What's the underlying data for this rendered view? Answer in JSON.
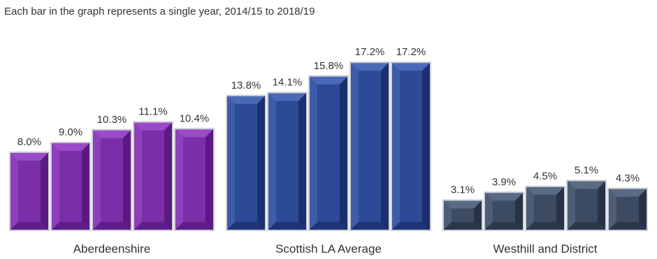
{
  "subtitle": "Each bar in the graph represents a single year, 2014/15 to 2018/19",
  "chart_data": {
    "type": "bar",
    "categories": [
      "Aberdeenshire",
      "Scottish LA Average",
      "Westhill and District"
    ],
    "series_per_category": 5,
    "values": [
      [
        8.0,
        9.0,
        10.3,
        11.1,
        10.4
      ],
      [
        13.8,
        14.1,
        15.8,
        17.2,
        17.2
      ],
      [
        3.1,
        3.9,
        4.5,
        5.1,
        4.3
      ]
    ],
    "value_labels": [
      [
        "8.0%",
        "9.0%",
        "10.3%",
        "11.1%",
        "10.4%"
      ],
      [
        "13.8%",
        "14.1%",
        "15.8%",
        "17.2%",
        "17.2%"
      ],
      [
        "3.1%",
        "3.9%",
        "4.5%",
        "5.1%",
        "4.3%"
      ]
    ],
    "group_colors": [
      {
        "face": "#7a2fa8",
        "light": "#9a4cc8",
        "dark": "#5a1a82"
      },
      {
        "face": "#2c4a96",
        "light": "#4a6ab8",
        "dark": "#1a2f6e"
      },
      {
        "face": "#3c4a62",
        "light": "#5a6a84",
        "dark": "#283246"
      }
    ],
    "ylim": [
      0,
      18
    ],
    "grid": false,
    "legend": "none"
  }
}
